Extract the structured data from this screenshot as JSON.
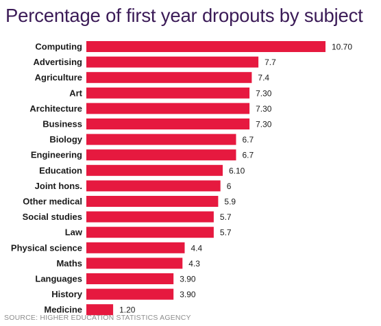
{
  "chart_data": {
    "type": "bar",
    "orientation": "horizontal",
    "title": "Percentage of first year dropouts by subject",
    "categories": [
      "Computing",
      "Advertising",
      "Agriculture",
      "Art",
      "Architecture",
      "Business",
      "Biology",
      "Engineering",
      "Education",
      "Joint hons.",
      "Other medical",
      "Social studies",
      "Law",
      "Physical science",
      "Maths",
      "Languages",
      "History",
      "Medicine"
    ],
    "values": [
      10.7,
      7.7,
      7.4,
      7.3,
      7.3,
      7.3,
      6.7,
      6.7,
      6.1,
      6,
      5.9,
      5.7,
      5.7,
      4.4,
      4.3,
      3.9,
      3.9,
      1.2
    ],
    "value_labels": [
      "10.70",
      "7.7",
      "7.4",
      "7.30",
      "7.30",
      "7.30",
      "6.7",
      "6.7",
      "6.10",
      "6",
      "5.9",
      "5.7",
      "5.7",
      "4.4",
      "4.3",
      "3.90",
      "3.90",
      "1.20"
    ],
    "xlabel": "",
    "ylabel": "",
    "xlim": [
      0,
      10.7
    ],
    "grid": false,
    "bar_color": "#e6193f",
    "source": "SOURCE: HIGHER EDUCATION STATISTICS AGENCY"
  },
  "colors": {
    "title": "#3b1b57",
    "label": "#1a1a1a",
    "bar": "#e6193f",
    "source": "#8c8c8c"
  }
}
